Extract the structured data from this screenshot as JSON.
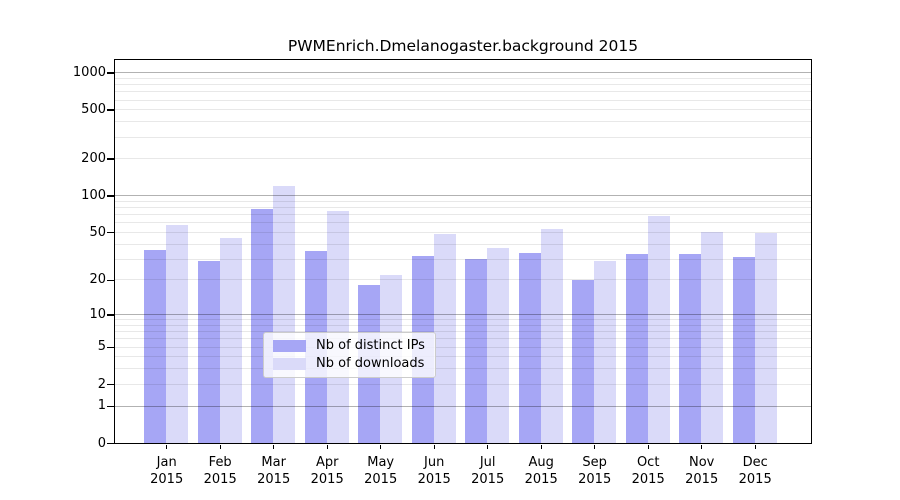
{
  "figure": {
    "title": "PWMEnrich.Dmelanogaster.background 2015"
  },
  "chart_data": {
    "type": "bar",
    "title": "PWMEnrich.Dmelanogaster.background 2015",
    "categories": [
      "Jan",
      "Feb",
      "Mar",
      "Apr",
      "May",
      "Jun",
      "Jul",
      "Aug",
      "Sep",
      "Oct",
      "Nov",
      "Dec"
    ],
    "year_label": "2015",
    "series": [
      {
        "name": "Nb of distinct IPs",
        "color": "#a6a6f5",
        "values": [
          36,
          29,
          78,
          35,
          18,
          32,
          30,
          34,
          20,
          33,
          33,
          31
        ]
      },
      {
        "name": "Nb of downloads",
        "color": "#dadaf9",
        "values": [
          58,
          45,
          120,
          75,
          22,
          48,
          37,
          53,
          29,
          68,
          50,
          49
        ]
      }
    ],
    "xlabel": "",
    "ylabel": "",
    "yscale": "log1p",
    "yticks": [
      0,
      1,
      2,
      5,
      10,
      20,
      50,
      100,
      200,
      500,
      1000
    ],
    "ylim": [
      0,
      1280
    ],
    "grid": "horizontal",
    "legend_position": "bottom-center"
  },
  "colors": {
    "background": "#ffffff",
    "axis": "#000000",
    "bar_ips": "#a6a6f5",
    "bar_downloads": "#dadaf9",
    "grid_major": "rgba(0,0,0,0.30)",
    "grid_minor": "rgba(0,0,0,0.09)",
    "legend_border": "#cccccc",
    "legend_background": "rgba(255,255,255,0.8)"
  }
}
